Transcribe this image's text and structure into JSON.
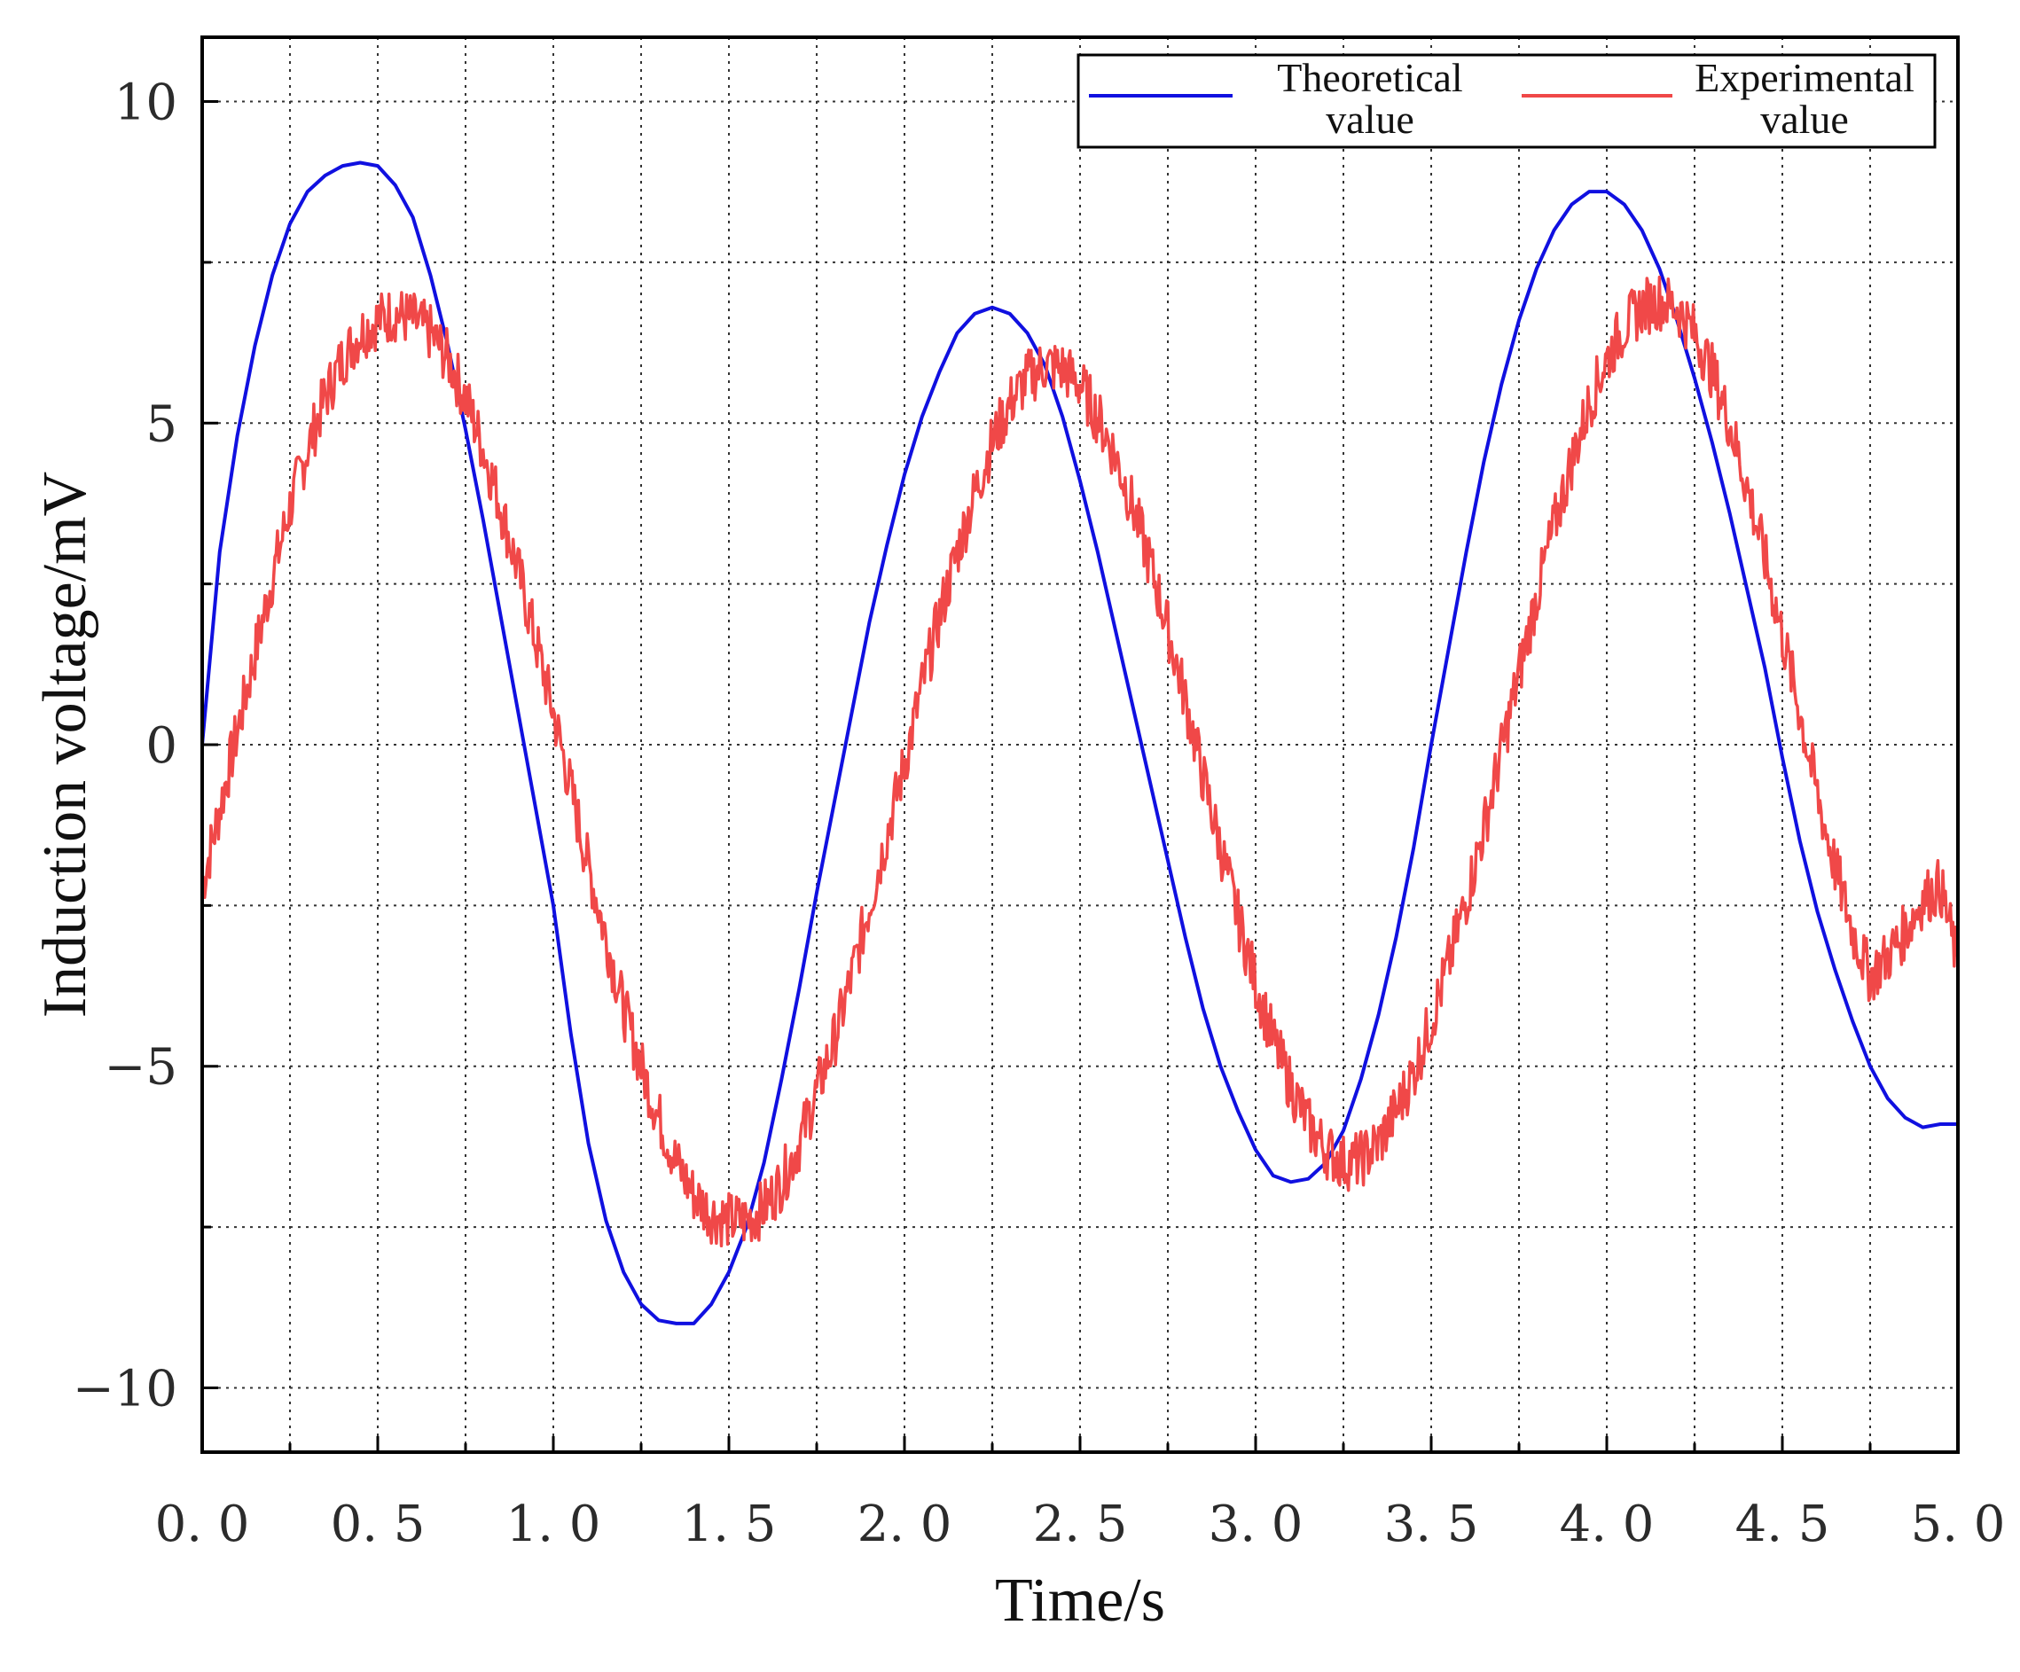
{
  "chart_data": {
    "type": "line",
    "title": "",
    "xlabel": "Time/s",
    "ylabel": "Induction voltage/mV",
    "xlim": [
      0,
      5
    ],
    "ylim": [
      -11,
      11
    ],
    "x_ticks": [
      0,
      0.5,
      1.0,
      1.5,
      2.0,
      2.5,
      3.0,
      3.5,
      4.0,
      4.5,
      5.0
    ],
    "x_tick_labels": [
      "0. 0",
      "0. 5",
      "1. 0",
      "1. 5",
      "2. 0",
      "2. 5",
      "3. 0",
      "3. 5",
      "4. 0",
      "4. 5",
      "5. 0"
    ],
    "y_ticks": [
      10,
      5,
      0,
      -5,
      -10
    ],
    "y_tick_labels": [
      "10",
      "5",
      "0",
      "−5",
      "−10"
    ],
    "grid": true,
    "legend_position": "top-right",
    "series": [
      {
        "name": "Theoretical value",
        "legend_lines": [
          "Theoretical",
          "value"
        ],
        "color": "#1010e0",
        "x": [
          0.0,
          0.05,
          0.1,
          0.15,
          0.2,
          0.25,
          0.3,
          0.35,
          0.4,
          0.45,
          0.5,
          0.55,
          0.6,
          0.65,
          0.7,
          0.75,
          0.8,
          0.85,
          0.9,
          0.95,
          1.0,
          1.05,
          1.1,
          1.15,
          1.2,
          1.25,
          1.3,
          1.35,
          1.4,
          1.45,
          1.5,
          1.55,
          1.6,
          1.65,
          1.7,
          1.75,
          1.8,
          1.85,
          1.9,
          1.95,
          2.0,
          2.05,
          2.1,
          2.15,
          2.2,
          2.25,
          2.3,
          2.35,
          2.4,
          2.45,
          2.5,
          2.55,
          2.6,
          2.65,
          2.7,
          2.75,
          2.8,
          2.85,
          2.9,
          2.95,
          3.0,
          3.05,
          3.1,
          3.15,
          3.2,
          3.25,
          3.3,
          3.35,
          3.4,
          3.45,
          3.5,
          3.55,
          3.6,
          3.65,
          3.7,
          3.75,
          3.8,
          3.85,
          3.9,
          3.95,
          4.0,
          4.05,
          4.1,
          4.15,
          4.2,
          4.25,
          4.3,
          4.35,
          4.4,
          4.45,
          4.5,
          4.55,
          4.6,
          4.65,
          4.7,
          4.75,
          4.8,
          4.85,
          4.9,
          4.95,
          5.0
        ],
        "values": [
          0.0,
          3.0,
          4.8,
          6.2,
          7.3,
          8.1,
          8.6,
          8.85,
          9.0,
          9.05,
          9.0,
          8.7,
          8.2,
          7.3,
          6.2,
          4.9,
          3.5,
          2.0,
          0.5,
          -1.0,
          -2.5,
          -4.5,
          -6.2,
          -7.4,
          -8.2,
          -8.7,
          -8.95,
          -9.0,
          -9.0,
          -8.7,
          -8.2,
          -7.5,
          -6.5,
          -5.2,
          -3.8,
          -2.3,
          -0.9,
          0.5,
          1.9,
          3.1,
          4.2,
          5.1,
          5.8,
          6.4,
          6.7,
          6.8,
          6.7,
          6.4,
          5.9,
          5.1,
          4.1,
          3.0,
          1.8,
          0.6,
          -0.6,
          -1.8,
          -3.0,
          -4.1,
          -5.0,
          -5.7,
          -6.3,
          -6.7,
          -6.8,
          -6.75,
          -6.5,
          -6.0,
          -5.2,
          -4.2,
          -3.0,
          -1.6,
          0.0,
          1.5,
          3.0,
          4.4,
          5.6,
          6.6,
          7.4,
          8.0,
          8.4,
          8.6,
          8.6,
          8.4,
          8.0,
          7.4,
          6.6,
          5.7,
          4.7,
          3.6,
          2.4,
          1.2,
          -0.2,
          -1.5,
          -2.6,
          -3.5,
          -4.3,
          -5.0,
          -5.5,
          -5.8,
          -5.95,
          -5.9,
          -5.9
        ]
      },
      {
        "name": "Experimental value",
        "legend_lines": [
          "Experimental",
          "value"
        ],
        "color": "#f04848",
        "x": [
          0.0,
          0.05,
          0.1,
          0.15,
          0.2,
          0.25,
          0.3,
          0.35,
          0.4,
          0.45,
          0.5,
          0.55,
          0.6,
          0.65,
          0.7,
          0.75,
          0.8,
          0.85,
          0.9,
          0.95,
          1.0,
          1.05,
          1.1,
          1.15,
          1.2,
          1.25,
          1.3,
          1.35,
          1.4,
          1.45,
          1.5,
          1.55,
          1.6,
          1.65,
          1.7,
          1.75,
          1.8,
          1.85,
          1.9,
          1.95,
          2.0,
          2.05,
          2.1,
          2.15,
          2.2,
          2.25,
          2.3,
          2.35,
          2.4,
          2.45,
          2.5,
          2.55,
          2.6,
          2.65,
          2.7,
          2.75,
          2.8,
          2.85,
          2.9,
          2.95,
          3.0,
          3.05,
          3.1,
          3.15,
          3.2,
          3.25,
          3.3,
          3.35,
          3.4,
          3.45,
          3.5,
          3.55,
          3.6,
          3.65,
          3.7,
          3.75,
          3.8,
          3.85,
          3.9,
          3.95,
          4.0,
          4.05,
          4.1,
          4.15,
          4.2,
          4.25,
          4.3,
          4.35,
          4.4,
          4.45,
          4.5,
          4.55,
          4.6,
          4.65,
          4.7,
          4.75,
          4.8,
          4.85,
          4.9,
          4.95,
          5.0
        ],
        "values": [
          -2.2,
          -1.0,
          0.2,
          1.4,
          2.6,
          3.7,
          4.6,
          5.4,
          6.0,
          6.4,
          6.6,
          6.7,
          6.6,
          6.4,
          6.0,
          5.4,
          4.6,
          3.7,
          2.7,
          1.6,
          0.5,
          -0.7,
          -1.9,
          -3.0,
          -4.1,
          -5.0,
          -5.8,
          -6.5,
          -7.0,
          -7.3,
          -7.4,
          -7.4,
          -7.2,
          -6.8,
          -6.2,
          -5.4,
          -4.6,
          -3.6,
          -2.5,
          -1.4,
          -0.3,
          0.9,
          2.0,
          3.0,
          3.9,
          4.7,
          5.3,
          5.7,
          5.9,
          5.85,
          5.6,
          5.1,
          4.5,
          3.7,
          2.8,
          1.8,
          0.7,
          -0.5,
          -1.6,
          -2.7,
          -3.7,
          -4.6,
          -5.3,
          -5.9,
          -6.3,
          -6.5,
          -6.45,
          -6.2,
          -5.7,
          -5.1,
          -4.3,
          -3.4,
          -2.4,
          -1.3,
          -0.1,
          1.1,
          2.3,
          3.4,
          4.4,
          5.3,
          6.0,
          6.5,
          6.8,
          6.9,
          6.8,
          6.4,
          5.8,
          5.0,
          4.0,
          2.9,
          1.7,
          0.5,
          -0.8,
          -1.9,
          -2.9,
          -3.6,
          -3.3,
          -2.9,
          -2.4,
          -2.2,
          -3.4
        ]
      }
    ]
  }
}
